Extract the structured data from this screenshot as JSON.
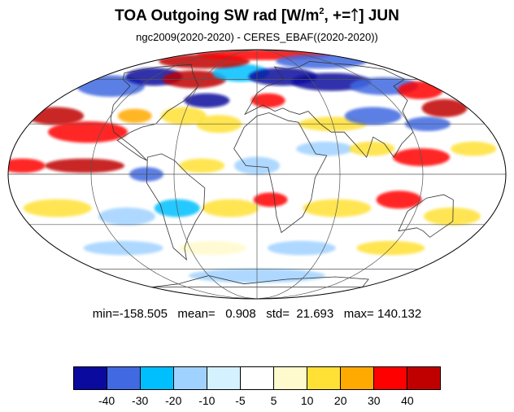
{
  "title": {
    "prefix": "TOA Outgoing SW rad [W/m",
    "superscript": "2",
    "middle": ", +=",
    "suffix": "] JUN"
  },
  "subtitle": "ngc2009(2020-2020) - CERES_EBAF((2020-2020))",
  "stats": {
    "text": "min=-158.505   mean=   0.908   std=  21.693   max= 140.132"
  },
  "map": {
    "projection": "mollweide",
    "variable": "TOA Outgoing SW rad difference",
    "month": "JUN"
  },
  "colorbar": {
    "colors": [
      "#0a0a9e",
      "#4169e1",
      "#00bfff",
      "#a0d2ff",
      "#d4f1ff",
      "#ffffff",
      "#fffacd",
      "#ffe135",
      "#ffaa00",
      "#ff0000",
      "#c00000"
    ],
    "tick_labels": [
      "-40",
      "-30",
      "-20",
      "-10",
      "-5",
      "5",
      "10",
      "20",
      "30",
      "40"
    ]
  }
}
